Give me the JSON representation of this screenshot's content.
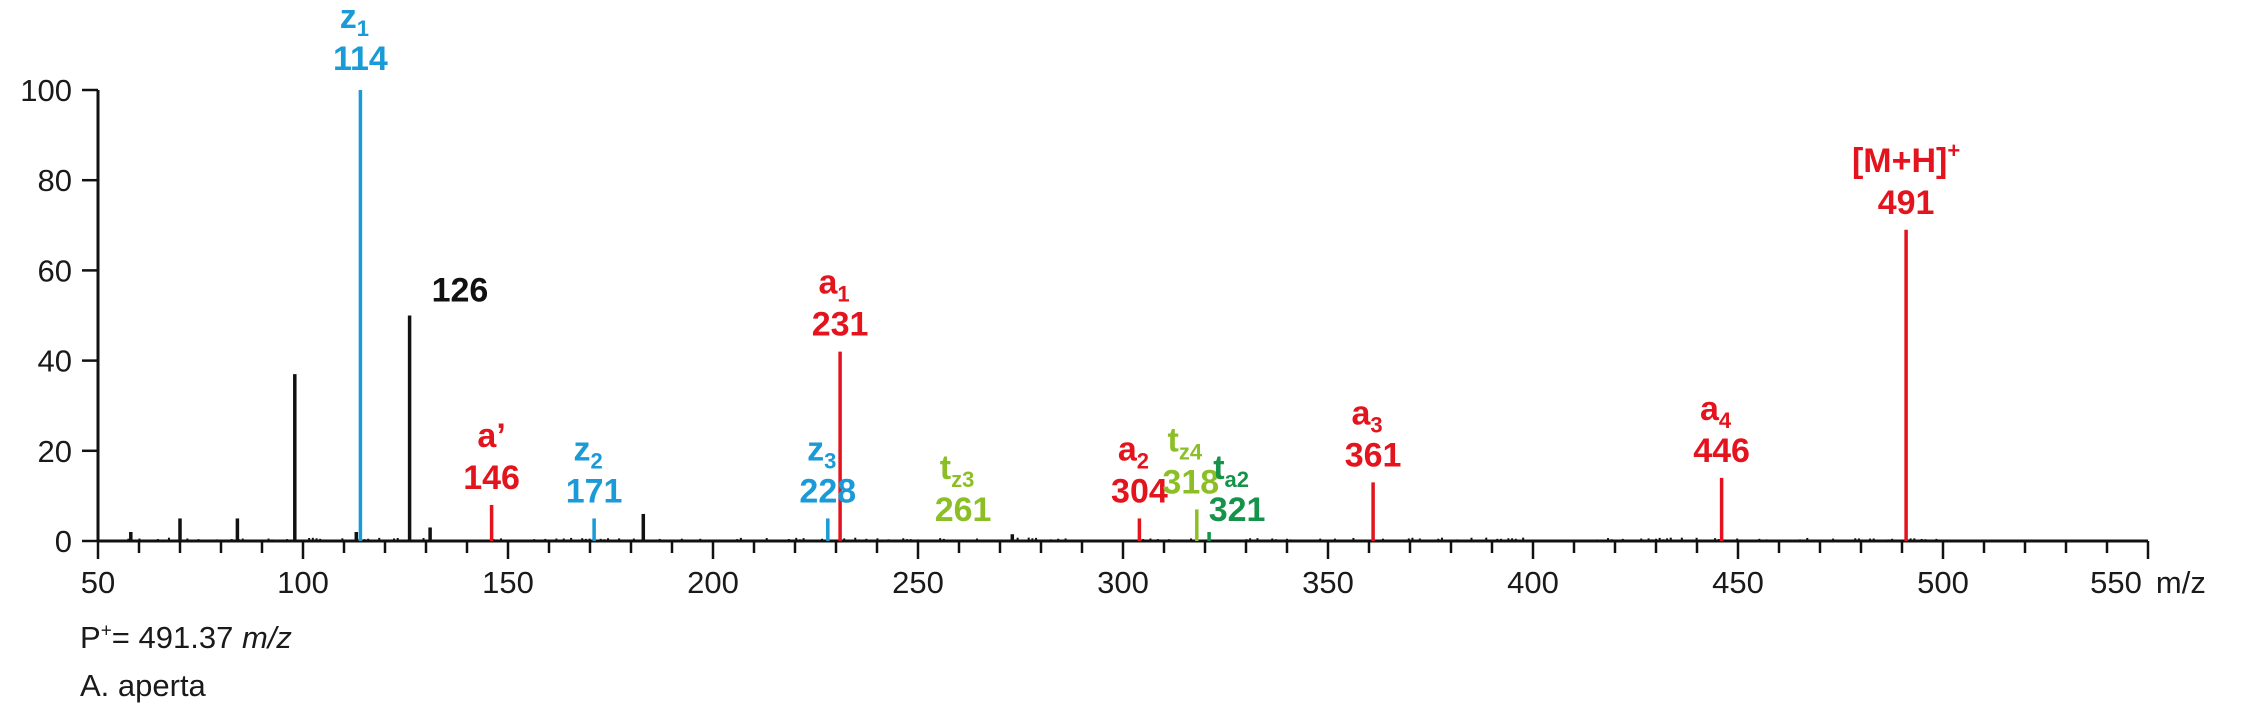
{
  "chart_data": {
    "type": "bar",
    "xlabel": "m/z",
    "ylabel": "",
    "xlim": [
      50,
      550
    ],
    "ylim": [
      0,
      100
    ],
    "xticks_labeled": [
      50,
      100,
      150,
      200,
      250,
      300,
      350,
      400,
      450,
      500,
      550
    ],
    "yticks": [
      0,
      20,
      40,
      60,
      80,
      100
    ],
    "grid": false,
    "colors": {
      "unassigned": "#111111",
      "a_series": "#e3141d",
      "z_series": "#1a9ad6",
      "tz_series": "#8cbf26",
      "ta_series": "#15934a"
    },
    "peaks": [
      {
        "mz": 114,
        "intensity": 100,
        "ion": "z",
        "sub": "1",
        "label": "114"
      },
      {
        "mz": 126,
        "intensity": 50,
        "ion": "",
        "sub": "",
        "label": "126"
      },
      {
        "mz": 146,
        "intensity": 8,
        "ion": "a’",
        "sub": "",
        "label": "146"
      },
      {
        "mz": 171,
        "intensity": 5,
        "ion": "z",
        "sub": "2",
        "label": "171"
      },
      {
        "mz": 228,
        "intensity": 5,
        "ion": "z",
        "sub": "3",
        "label": "228"
      },
      {
        "mz": 231,
        "intensity": 42,
        "ion": "a",
        "sub": "1",
        "label": "231"
      },
      {
        "mz": 261,
        "intensity": 0,
        "ion": "t",
        "sub": "z3",
        "label": "261"
      },
      {
        "mz": 304,
        "intensity": 5,
        "ion": "a",
        "sub": "2",
        "label": "304"
      },
      {
        "mz": 318,
        "intensity": 7,
        "ion": "t",
        "sub": "z4",
        "label": "318"
      },
      {
        "mz": 321,
        "intensity": 2,
        "ion": "t",
        "sub": "a2",
        "label": "321"
      },
      {
        "mz": 361,
        "intensity": 13,
        "ion": "a",
        "sub": "3",
        "label": "361"
      },
      {
        "mz": 446,
        "intensity": 14,
        "ion": "a",
        "sub": "4",
        "label": "446"
      },
      {
        "mz": 491,
        "intensity": 69,
        "ion": "[M+H]",
        "sub": "",
        "sup": "+",
        "label": "491"
      }
    ],
    "unassigned_peaks": [
      {
        "mz": 58,
        "intensity": 2
      },
      {
        "mz": 70,
        "intensity": 5
      },
      {
        "mz": 84,
        "intensity": 5
      },
      {
        "mz": 98,
        "intensity": 37
      },
      {
        "mz": 113,
        "intensity": 2
      },
      {
        "mz": 131,
        "intensity": 3
      },
      {
        "mz": 183,
        "intensity": 6
      },
      {
        "mz": 273,
        "intensity": 1.5
      }
    ]
  },
  "caption": {
    "precursor_prefix": "P",
    "precursor_sup": "+",
    "precursor_value": "= 491.37",
    "precursor_unit": "m/z",
    "species": "A. aperta"
  }
}
